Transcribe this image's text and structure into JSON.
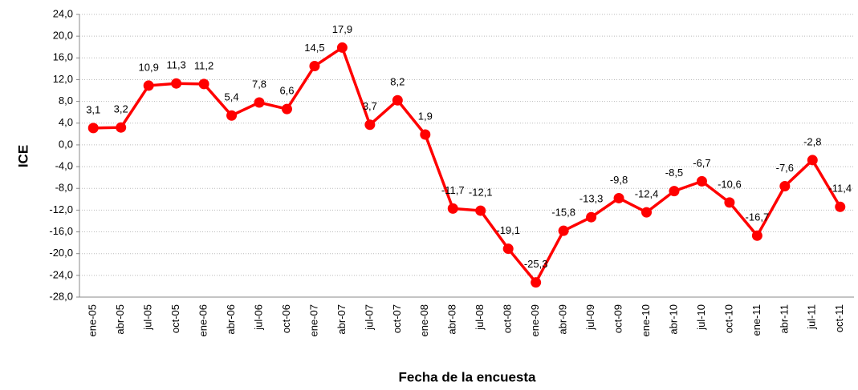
{
  "chart_data": {
    "type": "line",
    "x_label": "Fecha de la encuesta",
    "y_label": "ICE",
    "categories": [
      "ene-05",
      "abr-05",
      "jul-05",
      "oct-05",
      "ene-06",
      "abr-06",
      "jul-06",
      "oct-06",
      "ene-07",
      "abr-07",
      "jul-07",
      "oct-07",
      "ene-08",
      "abr-08",
      "jul-08",
      "oct-08",
      "ene-09",
      "abr-09",
      "jul-09",
      "oct-09",
      "ene-10",
      "abr-10",
      "jul-10",
      "oct-10",
      "ene-11",
      "abr-11",
      "jul-11",
      "oct-11"
    ],
    "series": [
      {
        "name": "ICE",
        "color": "#ff0000",
        "values": [
          3.1,
          3.2,
          10.9,
          11.3,
          11.2,
          5.4,
          7.8,
          6.6,
          14.5,
          17.9,
          3.7,
          8.2,
          1.9,
          -11.7,
          -12.1,
          -19.1,
          -25.3,
          -15.8,
          -13.3,
          -9.8,
          -12.4,
          -8.5,
          -6.7,
          -10.6,
          -16.7,
          -7.6,
          -2.8,
          -11.4
        ],
        "value_labels": [
          "3,1",
          "3,2",
          "10,9",
          "11,3",
          "11,2",
          "5,4",
          "7,8",
          "6,6",
          "14,5",
          "17,9",
          "3,7",
          "8,2",
          "1,9",
          "-11,7",
          "-12,1",
          "-19,1",
          "-25,3",
          "-15,8",
          "-13,3",
          "-9,8",
          "-12,4",
          "-8,5",
          "-6,7",
          "-10,6",
          "-16,7",
          "-7,6",
          "-2,8",
          "-11,4"
        ]
      }
    ],
    "ylim": [
      -28,
      24
    ],
    "yticks": [
      {
        "value": 24,
        "label": "24,0"
      },
      {
        "value": 20,
        "label": "20,0"
      },
      {
        "value": 16,
        "label": "16,0"
      },
      {
        "value": 12,
        "label": "12,0"
      },
      {
        "value": 8,
        "label": "8,0"
      },
      {
        "value": 4,
        "label": "4,0"
      },
      {
        "value": 0,
        "label": "0,0"
      },
      {
        "value": -4,
        "label": "-4,0"
      },
      {
        "value": -8,
        "label": "-8,0"
      },
      {
        "value": -12,
        "label": "-12,0"
      },
      {
        "value": -16,
        "label": "-16,0"
      },
      {
        "value": -20,
        "label": "-20,0"
      },
      {
        "value": -24,
        "label": "-24,0"
      },
      {
        "value": -28,
        "label": "-28,0"
      }
    ],
    "grid": true
  }
}
